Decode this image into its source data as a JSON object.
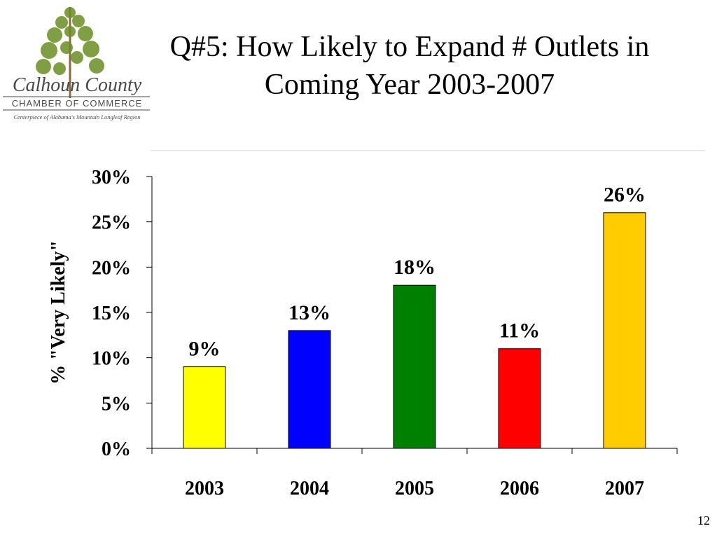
{
  "slide": {
    "title_line1": "Q#5: How Likely to Expand # Outlets in",
    "title_line2": "Coming Year  2003-2007",
    "page_number": "12"
  },
  "logo": {
    "name_line": "Calhoun County",
    "org_line": "CHAMBER OF COMMERCE",
    "tagline": "Centerpiece of Alabama's Mountain Longleaf Region",
    "colors": {
      "tree": "#6b8e23",
      "trunk": "#8b6b3e",
      "text": "#4a4a4a"
    }
  },
  "chart_data": {
    "type": "bar",
    "categories": [
      "2003",
      "2004",
      "2005",
      "2006",
      "2007"
    ],
    "values": [
      9,
      13,
      18,
      11,
      26
    ],
    "data_labels": [
      "9%",
      "13%",
      "18%",
      "11%",
      "26%"
    ],
    "bar_colors": [
      "#ffff00",
      "#0000ff",
      "#008000",
      "#ff0000",
      "#ffcc00"
    ],
    "ylabel": "% \"Very Likely\"",
    "ylim": [
      0,
      30
    ],
    "yticks": [
      0,
      5,
      10,
      15,
      20,
      25,
      30
    ],
    "ytick_labels": [
      "0%",
      "5%",
      "10%",
      "15%",
      "20%",
      "25%",
      "30%"
    ],
    "grid": false,
    "legend": "none"
  }
}
